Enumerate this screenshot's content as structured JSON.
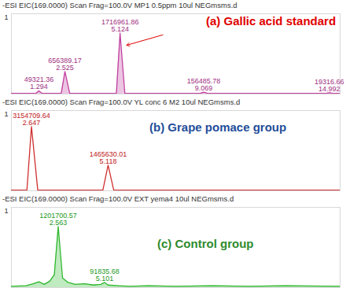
{
  "chart_data": [
    {
      "type": "area",
      "title": "-ESI EIC(169.0000) Scan Frag=100.0V MP1 0.5ppm 10ul NEGmsms.d",
      "annotation": "(a)   Gallic acid standard",
      "scale_label": "1",
      "color": "#c040a0",
      "tick_labels": false,
      "xlim": [
        0,
        15.5
      ],
      "ylim": [
        0,
        1.25
      ],
      "x": [
        0,
        1.15,
        1.294,
        1.45,
        2.35,
        2.525,
        2.75,
        4.95,
        5.124,
        5.35,
        8.9,
        9.069,
        9.25,
        14.85,
        14.992,
        15.15,
        15.5
      ],
      "values": [
        0.01,
        0.01,
        0.05,
        0.01,
        0.01,
        0.35,
        0.01,
        0.01,
        0.95,
        0.01,
        0.01,
        0.03,
        0.01,
        0.01,
        0.02,
        0.01,
        0.01
      ],
      "peak_labels": [
        {
          "rt": 1.294,
          "area": 49321.36
        },
        {
          "rt": 2.525,
          "area": 656389.17
        },
        {
          "rt": 5.124,
          "area": 1716961.86
        },
        {
          "rt": 9.069,
          "area": 156485.78
        },
        {
          "rt": 14.992,
          "area": 19316.66
        }
      ]
    },
    {
      "type": "line",
      "title": "-ESI EIC(169.0000) Scan Frag=100.0V YL conc 6  M2 10ul NEGmsms.d",
      "annotation": "(b) Grape pomace group",
      "scale_label": "1",
      "color": "#d03030",
      "tick_labels": false,
      "xlim": [
        2,
        12.6
      ],
      "ylim": [
        0,
        1.25
      ],
      "x": [
        2,
        2.5,
        2.647,
        2.85,
        4.95,
        5.118,
        5.3,
        12.6
      ],
      "values": [
        0.01,
        0.01,
        1.0,
        0.01,
        0.01,
        0.4,
        0.01,
        0.01
      ],
      "peak_labels": [
        {
          "rt": 2.647,
          "area": 3154709.64
        },
        {
          "rt": 5.118,
          "area": 1465630.01
        }
      ]
    },
    {
      "type": "area",
      "title": "-ESI EIC(169.0000) Scan Frag=100.0V EXT yema4 10ul NEGmsms.d",
      "annotation": "(c) Control group",
      "scale_label": "1",
      "color": "#2eb82e",
      "tick_labels": false,
      "xlim": [
        0,
        18
      ],
      "ylim": [
        0,
        1.25
      ],
      "x": [
        0,
        0.8,
        1.2,
        1.5,
        1.8,
        2.1,
        2.35,
        2.563,
        2.8,
        3.1,
        3.5,
        4.0,
        4.5,
        4.9,
        5.101,
        5.3,
        5.8,
        6.5,
        7.5,
        9,
        11,
        13,
        15,
        18
      ],
      "values": [
        0.02,
        0.03,
        0.06,
        0.09,
        0.05,
        0.1,
        0.2,
        0.95,
        0.15,
        0.08,
        0.05,
        0.06,
        0.04,
        0.05,
        0.08,
        0.04,
        0.03,
        0.02,
        0.03,
        0.02,
        0.03,
        0.02,
        0.03,
        0.02
      ],
      "peak_labels": [
        {
          "rt": 2.563,
          "area": 1201700.57
        },
        {
          "rt": 5.101,
          "area": 91835.68
        }
      ]
    }
  ]
}
